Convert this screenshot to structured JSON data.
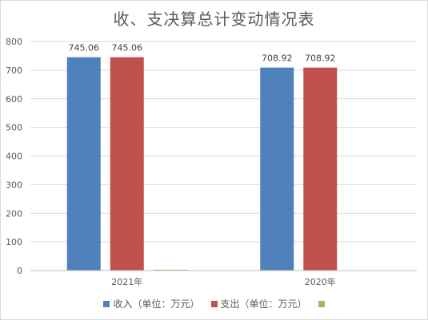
{
  "chart_data": {
    "type": "bar",
    "title": "收、支决算总计变动情况表",
    "categories": [
      "2021年",
      "2020年"
    ],
    "series": [
      {
        "name": "收入（单位：万元）",
        "values": [
          745.06,
          708.92
        ],
        "color": "#4f81bd",
        "labels": [
          "745.06",
          "708.92"
        ]
      },
      {
        "name": "支出（单位：万元）",
        "values": [
          745.06,
          708.92
        ],
        "color": "#c0504d",
        "labels": [
          "745.06",
          "708.92"
        ]
      },
      {
        "name": "",
        "values": [
          3,
          0
        ],
        "color": "#9bbb59",
        "labels": [
          "",
          ""
        ]
      }
    ],
    "ylim": [
      0,
      800
    ],
    "yticks": [
      0,
      100,
      200,
      300,
      400,
      500,
      600,
      700,
      800
    ],
    "grid": true,
    "legend": "bottom"
  }
}
